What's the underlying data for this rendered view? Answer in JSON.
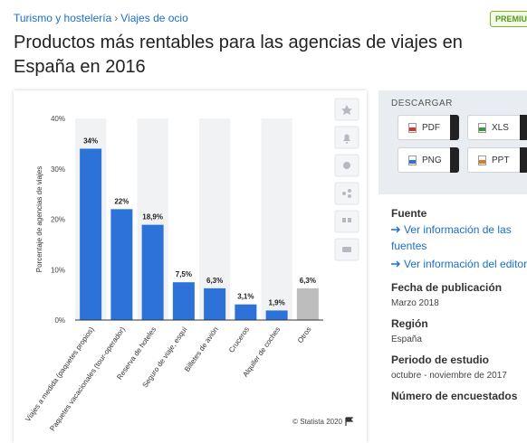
{
  "breadcrumb": [
    "Turismo y hostelería",
    "›",
    "Viajes de ocio"
  ],
  "badge": "PREMIUM",
  "title": "Productos más rentables para las agencias de viajes en España en 2016",
  "chart_data": {
    "type": "bar",
    "ylabel": "Porcentaje de agencias de viajes",
    "categories": [
      "Viajes a medida (paquetes propios)",
      "Paquetes vacacionales (tour-operador)",
      "Reserva de hoteles",
      "Seguro de viaje, esquí",
      "Billetes de avión",
      "Cruceros",
      "Alquiler de coches",
      "Otros"
    ],
    "values": [
      34,
      22,
      18.9,
      7.5,
      6.3,
      3.1,
      1.9,
      6.3
    ],
    "value_labels": [
      "34%",
      "22%",
      "18,9%",
      "7,5%",
      "6,3%",
      "3,1%",
      "1,9%",
      "6,3%"
    ],
    "colors": [
      "#2c72d9",
      "#2c72d9",
      "#2c72d9",
      "#2c72d9",
      "#2c72d9",
      "#2c72d9",
      "#2c72d9",
      "#bdbdbd"
    ],
    "ylim": [
      0,
      40
    ],
    "yticks": [
      {
        "value": 0,
        "label": "0%"
      },
      {
        "value": 10,
        "label": "10%"
      },
      {
        "value": 20,
        "label": "20%"
      },
      {
        "value": 30,
        "label": "30%"
      },
      {
        "value": 40,
        "label": "40%"
      }
    ],
    "grid": false,
    "credit": "© Statista 2020"
  },
  "download": {
    "title": "DESCARGAR",
    "buttons": [
      "PDF",
      "XLS",
      "PNG",
      "PPT"
    ]
  },
  "info": {
    "source_label": "Fuente",
    "source_links": [
      "Ver información de las fuentes",
      "Ver información del editor"
    ],
    "fields": [
      {
        "label": "Fecha de publicación",
        "value": "Marzo 2018"
      },
      {
        "label": "Región",
        "value": "España"
      },
      {
        "label": "Periodo de estudio",
        "value": "octubre - noviembre de 2017"
      },
      {
        "label": "Número de encuestados",
        "value": null
      }
    ]
  }
}
